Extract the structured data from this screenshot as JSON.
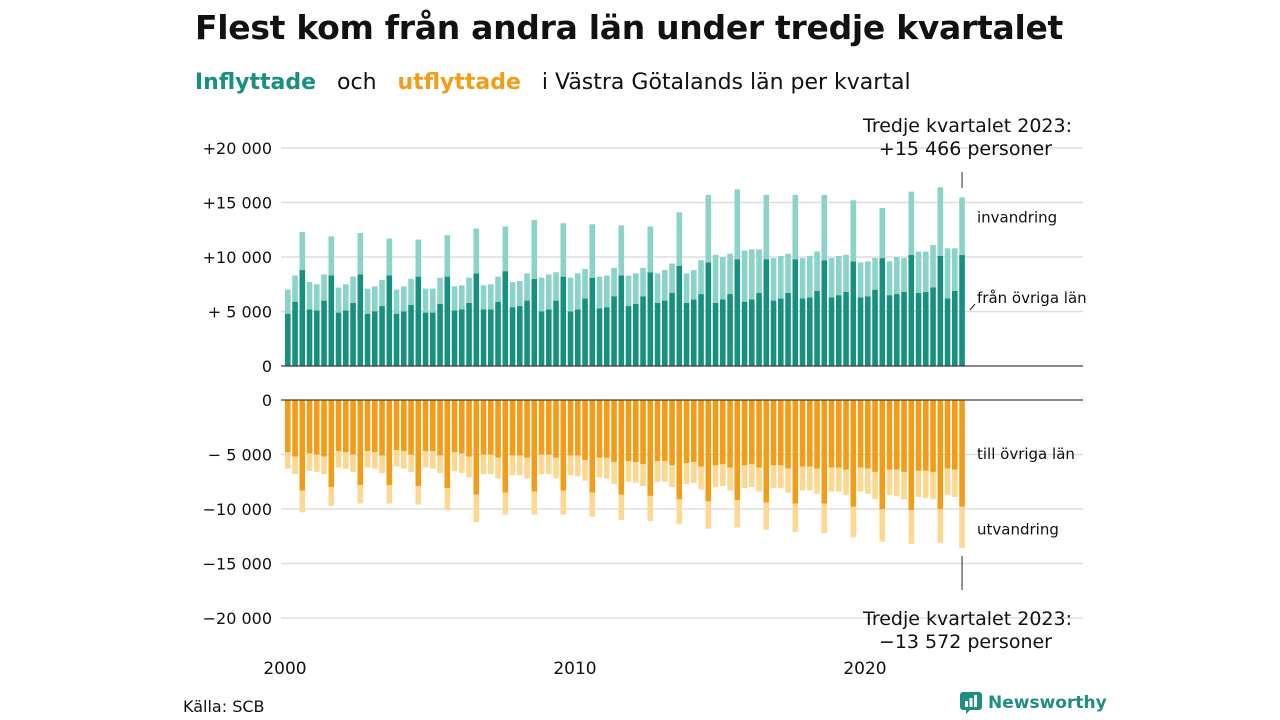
{
  "title": "Flest kom från andra län under tredje kvartalet",
  "subtitle": {
    "part1": "Inflyttade",
    "part2": "och",
    "part3": "utflyttade",
    "part4": "i Västra Götalands län per kvartal"
  },
  "source": "Källa: SCB",
  "brand": "Newsworthy",
  "colors": {
    "inflyttade_from_other": "#17907f",
    "invandring": "#8bd3c9",
    "utflyttade_to_other": "#f29d18",
    "utvandring": "#fcd893",
    "grid": "#dddddd"
  },
  "chart_data": [
    {
      "type": "bar",
      "stacked": true,
      "panel": "Inflyttade",
      "x_start": "2000 Q1",
      "x_end": "2023 Q3",
      "xticks": [
        "2000",
        "2010",
        "2020"
      ],
      "yticks": [
        "0",
        "+ 5 000",
        "+10 000",
        "+15 000",
        "+20 000"
      ],
      "ylim": [
        0,
        20000
      ],
      "grid": true,
      "annotation": [
        "Tredje kvartalet 2023:",
        "+15 466 personer"
      ],
      "series": [
        {
          "name": "från övriga län",
          "values": [
            4800,
            5900,
            8800,
            5200,
            5100,
            6000,
            8300,
            4900,
            5100,
            5800,
            8400,
            4800,
            5000,
            5500,
            8300,
            4800,
            5000,
            5600,
            8200,
            4900,
            4900,
            5700,
            8200,
            5100,
            5200,
            5800,
            8500,
            5200,
            5200,
            5900,
            8700,
            5400,
            5500,
            6000,
            8000,
            5000,
            5200,
            6000,
            8200,
            5000,
            5200,
            6200,
            8100,
            5300,
            5400,
            6400,
            8300,
            5500,
            5700,
            6400,
            8600,
            5800,
            6000,
            6700,
            9200,
            5800,
            6100,
            6600,
            9500,
            5800,
            6100,
            6600,
            9800,
            5900,
            6100,
            6700,
            9800,
            6000,
            6200,
            6700,
            9800,
            6200,
            6300,
            6900,
            9700,
            6300,
            6500,
            6800,
            9600,
            6300,
            6400,
            7000,
            9900,
            6500,
            6600,
            6800,
            10200,
            6700,
            6800,
            7200,
            10100,
            6200,
            6900,
            10200
          ]
        },
        {
          "name": "invandring",
          "values": [
            2200,
            2400,
            3500,
            2500,
            2400,
            2400,
            3600,
            2300,
            2400,
            2400,
            3800,
            2300,
            2300,
            2400,
            3400,
            2200,
            2300,
            2400,
            3400,
            2200,
            2200,
            2400,
            3800,
            2200,
            2200,
            2300,
            4100,
            2200,
            2300,
            2300,
            4100,
            2300,
            2300,
            2500,
            5400,
            3100,
            3200,
            2600,
            4900,
            3100,
            3300,
            2700,
            4900,
            2900,
            2900,
            2600,
            4600,
            2800,
            2800,
            2600,
            4200,
            2700,
            2800,
            2700,
            4900,
            2700,
            2700,
            3100,
            6200,
            4400,
            3900,
            3700,
            6400,
            4700,
            4600,
            4000,
            5900,
            3900,
            3900,
            3600,
            5900,
            3700,
            3800,
            3600,
            6000,
            3600,
            3600,
            3400,
            5600,
            3200,
            3200,
            2900,
            4600,
            3100,
            3400,
            3100,
            5800,
            3800,
            3700,
            3900,
            6300,
            4600,
            3900,
            5266
          ]
        }
      ]
    },
    {
      "type": "bar",
      "stacked": true,
      "panel": "Utflyttade",
      "x_start": "2000 Q1",
      "x_end": "2023 Q3",
      "xticks": [
        "2000",
        "2010",
        "2020"
      ],
      "yticks": [
        "0",
        "− 5 000",
        "−10 000",
        "−15 000",
        "−20 000"
      ],
      "ylim": [
        -20000,
        0
      ],
      "grid": true,
      "annotation": [
        "Tredje kvartalet 2023:",
        "−13 572 personer"
      ],
      "series": [
        {
          "name": "till övriga län",
          "values": [
            -4800,
            -5200,
            -8300,
            -4900,
            -5000,
            -5200,
            -8000,
            -4700,
            -4800,
            -5000,
            -7800,
            -4700,
            -4800,
            -5100,
            -7800,
            -4600,
            -4700,
            -5000,
            -7900,
            -4700,
            -4700,
            -5100,
            -8100,
            -4800,
            -4900,
            -5200,
            -8700,
            -5000,
            -5000,
            -5300,
            -8500,
            -5100,
            -5100,
            -5300,
            -8400,
            -5000,
            -5000,
            -5300,
            -8300,
            -5100,
            -5100,
            -5500,
            -8500,
            -5300,
            -5300,
            -5700,
            -8700,
            -5600,
            -5700,
            -5900,
            -8800,
            -5600,
            -5600,
            -6000,
            -9100,
            -5800,
            -5700,
            -6100,
            -9300,
            -6000,
            -5900,
            -6200,
            -9200,
            -6000,
            -5900,
            -6200,
            -9400,
            -6000,
            -6000,
            -6300,
            -9500,
            -6100,
            -6100,
            -6300,
            -9500,
            -6200,
            -6200,
            -6400,
            -9800,
            -6200,
            -6300,
            -6600,
            -10000,
            -6400,
            -6400,
            -6600,
            -10100,
            -6500,
            -6500,
            -6600,
            -10000,
            -6300,
            -6400,
            -9800
          ]
        },
        {
          "name": "utvandring",
          "values": [
            -1500,
            -1600,
            -2000,
            -1600,
            -1600,
            -1600,
            -1700,
            -1500,
            -1500,
            -1600,
            -1700,
            -1500,
            -1500,
            -1600,
            -1700,
            -1500,
            -1600,
            -1600,
            -1700,
            -1500,
            -1600,
            -1600,
            -2000,
            -1700,
            -1800,
            -1900,
            -2500,
            -1800,
            -1800,
            -1900,
            -2000,
            -1800,
            -1800,
            -1900,
            -2100,
            -1800,
            -1800,
            -1900,
            -2200,
            -1800,
            -1900,
            -1900,
            -2200,
            -1800,
            -1900,
            -2000,
            -2300,
            -1900,
            -1900,
            -2000,
            -2300,
            -1900,
            -1900,
            -2000,
            -2300,
            -1900,
            -1900,
            -2100,
            -2500,
            -2000,
            -2000,
            -2100,
            -2500,
            -2100,
            -2100,
            -2200,
            -2500,
            -2100,
            -2100,
            -2200,
            -2600,
            -2200,
            -2200,
            -2300,
            -2700,
            -2200,
            -2200,
            -2300,
            -2800,
            -2200,
            -2300,
            -2500,
            -3000,
            -2300,
            -2400,
            -2500,
            -3100,
            -2400,
            -2500,
            -2500,
            -3100,
            -2400,
            -2500,
            -3772
          ]
        }
      ]
    }
  ]
}
